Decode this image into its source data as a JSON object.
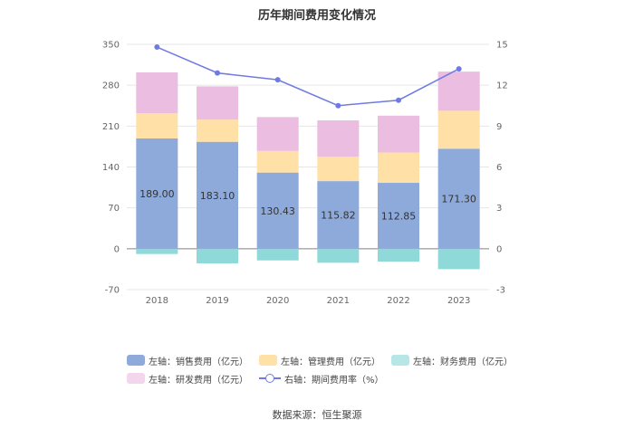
{
  "chart_data": {
    "type": "bar",
    "title": "历年期间费用变化情况",
    "categories": [
      "2018",
      "2019",
      "2020",
      "2021",
      "2022",
      "2023"
    ],
    "series": [
      {
        "name": "左轴：销售费用（亿元）",
        "axis": "left",
        "color": "#8eaadb",
        "values": [
          189.0,
          183.1,
          130.43,
          115.82,
          112.85,
          171.3
        ]
      },
      {
        "name": "左轴：管理费用（亿元）",
        "axis": "left",
        "color": "#ffe0a6",
        "values": [
          43,
          38,
          37,
          42,
          52,
          65
        ]
      },
      {
        "name": "左轴：财务费用（亿元）",
        "axis": "left",
        "color": "#8fd9d9",
        "values": [
          -9,
          -25,
          -20,
          -24,
          -22,
          -35
        ]
      },
      {
        "name": "左轴：研发费用（亿元）",
        "axis": "left",
        "color": "#ebbde0",
        "values": [
          70,
          57,
          58,
          62,
          63,
          67
        ]
      },
      {
        "name": "右轴：期间费用率（%）",
        "axis": "right",
        "type": "line",
        "color": "#6f7be0",
        "values": [
          14.8,
          12.9,
          12.4,
          10.5,
          10.9,
          13.2
        ]
      }
    ],
    "data_labels": [
      "189.00",
      "183.10",
      "130.43",
      "115.82",
      "112.85",
      "171.30"
    ],
    "y_left": {
      "lim": [
        -70,
        350
      ],
      "ticks": [
        "350",
        "280",
        "210",
        "140",
        "70",
        "0",
        "-70"
      ]
    },
    "y_right": {
      "lim": [
        -3,
        15
      ],
      "ticks": [
        "15",
        "12",
        "9",
        "6",
        "3",
        "0",
        "-3"
      ]
    },
    "grid": true,
    "legend_position": "bottom"
  },
  "legend": {
    "sales": "左轴：销售费用（亿元）",
    "admin": "左轴：管理费用（亿元）",
    "finance": "左轴：财务费用（亿元）",
    "rd": "左轴：研发费用（亿元）",
    "rate": "右轴：期间费用率（%）"
  },
  "source": "数据来源：恒生聚源"
}
